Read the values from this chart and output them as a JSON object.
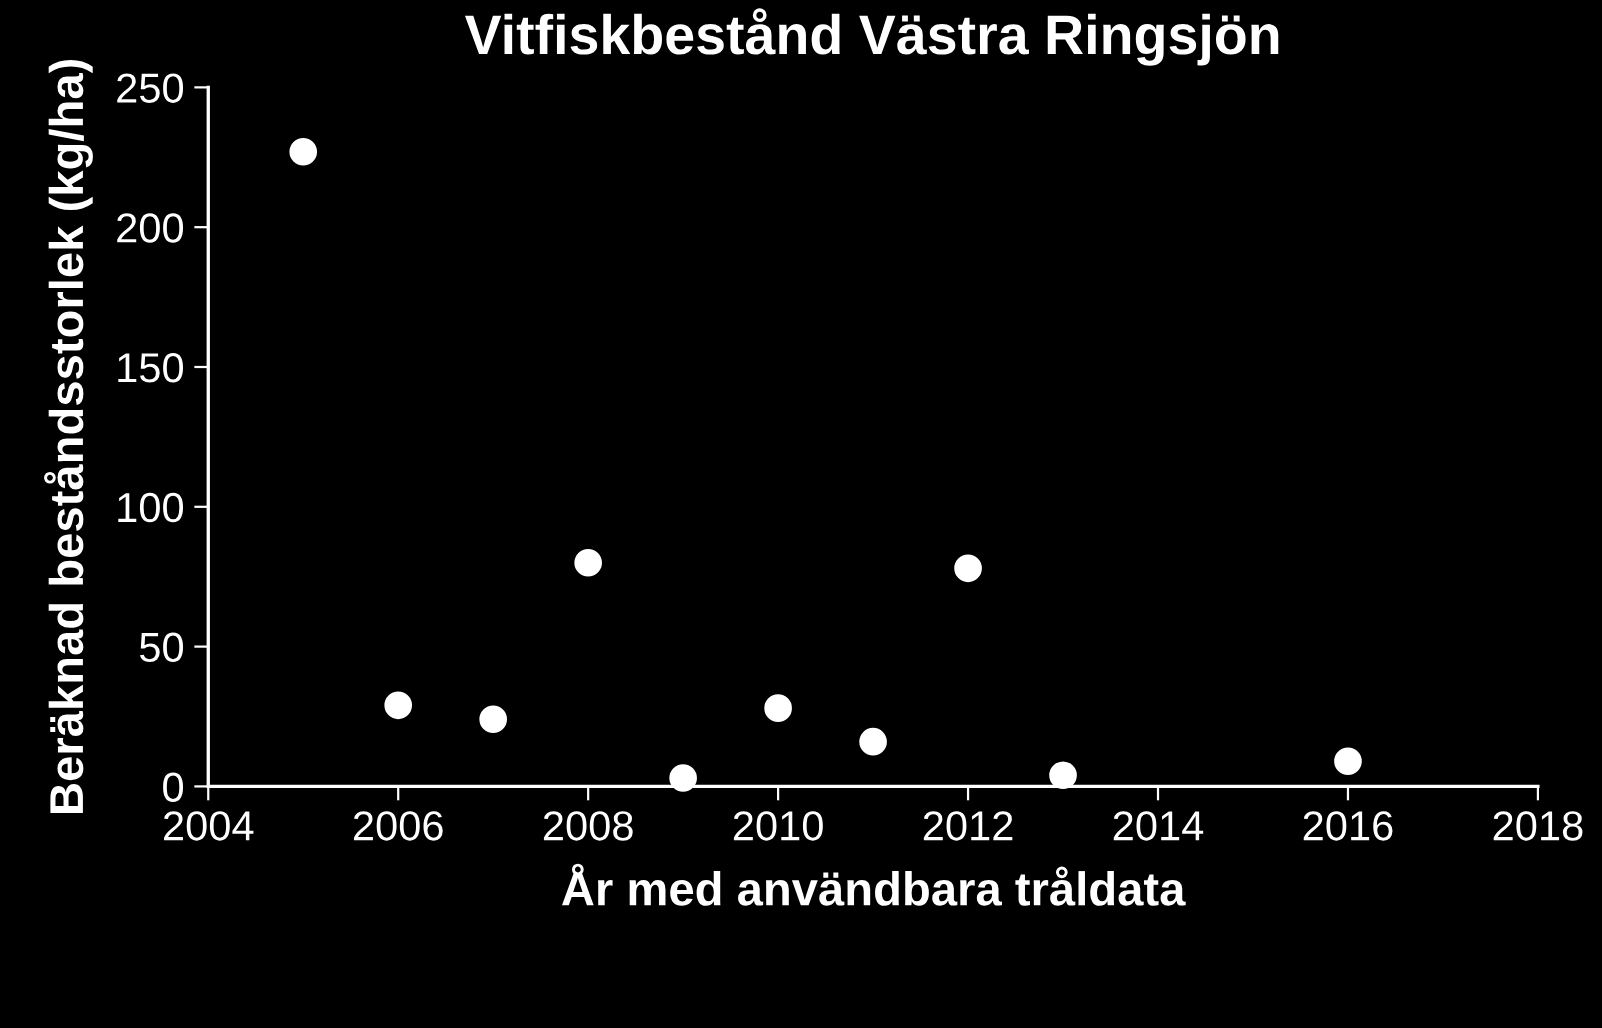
{
  "chart_data": {
    "type": "scatter",
    "title": "Vitfiskbestånd Västra Ringsjön",
    "xlabel": "År med användbara tråldata",
    "ylabel": "Beräknad beståndsstorlek (kg/ha)",
    "x": [
      2005,
      2006,
      2007,
      2008,
      2009,
      2010,
      2011,
      2012,
      2013,
      2016
    ],
    "values": [
      227,
      29,
      24,
      80,
      3,
      28,
      16,
      78,
      4,
      9
    ],
    "color": "#ffffff",
    "marker": "circle",
    "xlim": [
      2004,
      2018
    ],
    "xticks": [
      2004,
      2006,
      2008,
      2010,
      2012,
      2014,
      2016,
      2018
    ],
    "ylim": [
      0,
      250
    ],
    "yticks": [
      0,
      50,
      100,
      150,
      200,
      250
    ],
    "grid": false
  }
}
